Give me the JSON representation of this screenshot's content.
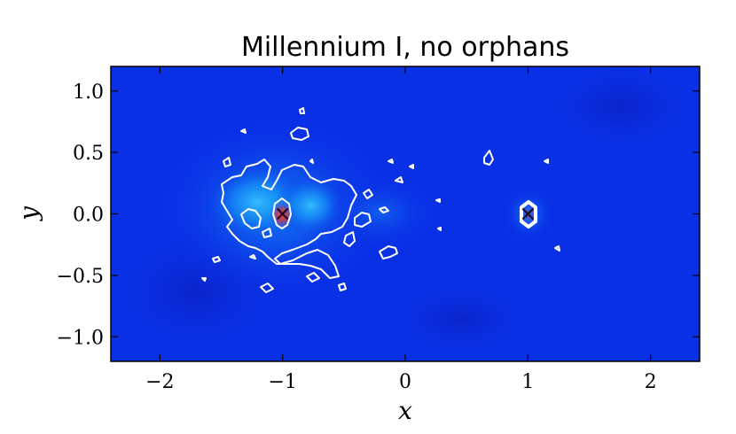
{
  "chart_data": {
    "type": "heatmap",
    "title": "Millennium I, no orphans",
    "xlabel": "x",
    "ylabel": "y",
    "xlim": [
      -2.4,
      2.4
    ],
    "ylim": [
      -1.2,
      1.2
    ],
    "x_ticks": [
      {
        "value": -2,
        "label": "−2"
      },
      {
        "value": -1,
        "label": "−1"
      },
      {
        "value": 0,
        "label": "0"
      },
      {
        "value": 1,
        "label": "1"
      },
      {
        "value": 2,
        "label": "2"
      }
    ],
    "y_ticks": [
      {
        "value": 1.0,
        "label": "1.0"
      },
      {
        "value": 0.5,
        "label": "0.5"
      },
      {
        "value": 0.0,
        "label": "0.0"
      },
      {
        "value": -0.5,
        "label": "−0.5"
      },
      {
        "value": -1.0,
        "label": "−1.0"
      }
    ],
    "markers": [
      {
        "name": "x-marker-left",
        "x": -1,
        "y": 0
      },
      {
        "name": "x-marker-right",
        "x": 1,
        "y": 0
      }
    ],
    "colormap": [
      "#000080",
      "#0000ff",
      "#0080ff",
      "#00e0ff",
      "#80ff80",
      "#ffff00",
      "#ff0000"
    ],
    "background_color": "#0a30e6",
    "contour_color": "#ffffff",
    "grid": false
  }
}
